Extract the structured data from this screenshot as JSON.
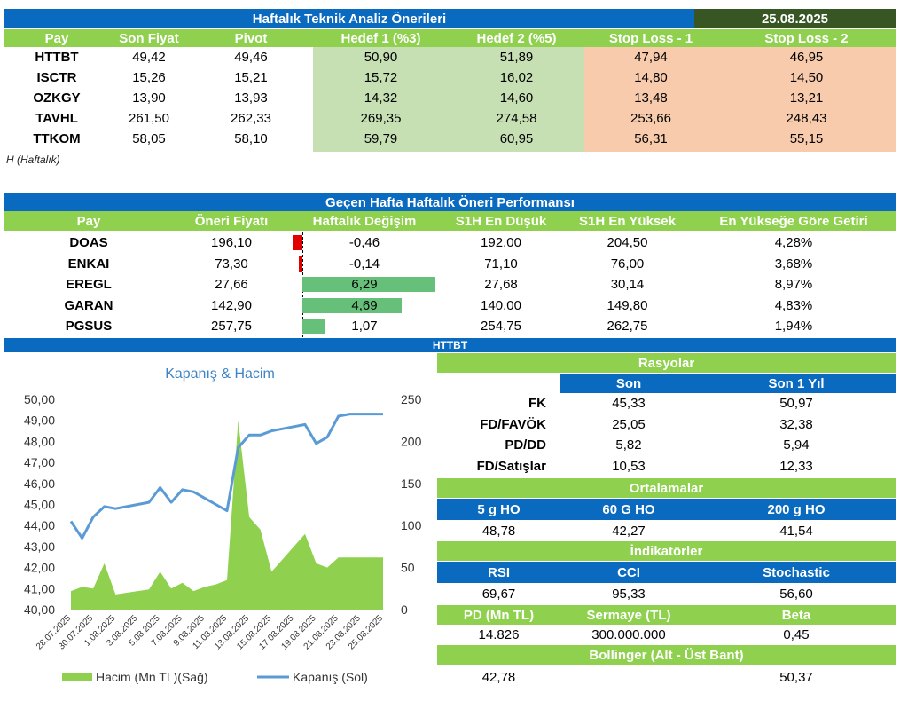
{
  "colors": {
    "blue": "#0a6ac0",
    "green": "#8fd14f",
    "dark_green": "#375623",
    "target_fill": "#c6e0b4",
    "stop_fill": "#f8cbad",
    "bar_negative": "#e00000",
    "bar_positive": "#66c07a",
    "line": "#5b9bd5",
    "area": "#8fd14f"
  },
  "weekly": {
    "title": "Haftalık Teknik Analiz Önerileri",
    "date": "25.08.2025",
    "headers": [
      "Pay",
      "Son Fiyat",
      "Pivot",
      "Hedef 1 (%3)",
      "Hedef 2 (%5)",
      "Stop Loss - 1",
      "Stop Loss - 2"
    ],
    "rows": [
      [
        "HTTBT",
        "49,42",
        "49,46",
        "50,90",
        "51,89",
        "47,94",
        "46,95"
      ],
      [
        "ISCTR",
        "15,26",
        "15,21",
        "15,72",
        "16,02",
        "14,80",
        "14,50"
      ],
      [
        "OZKGY",
        "13,90",
        "13,93",
        "14,32",
        "14,60",
        "13,48",
        "13,21"
      ],
      [
        "TAVHL",
        "261,50",
        "262,33",
        "269,35",
        "274,58",
        "253,66",
        "248,43"
      ],
      [
        "TTKOM",
        "58,05",
        "58,10",
        "59,79",
        "60,95",
        "56,31",
        "55,15"
      ]
    ],
    "note": "H (Haftalık)"
  },
  "performance": {
    "title": "Geçen Hafta Haftalık Öneri Performansı",
    "headers": [
      "Pay",
      "Öneri Fiyatı",
      "Haftalık Değişim",
      "S1H En Düşük",
      "S1H En Yüksek",
      "En Yükseğe Göre Getiri"
    ],
    "rows": [
      {
        "pay": "DOAS",
        "price": "196,10",
        "change": "-0,46",
        "change_value": -0.46,
        "low": "192,00",
        "high": "204,50",
        "ret": "4,28%"
      },
      {
        "pay": "ENKAI",
        "price": "73,30",
        "change": "-0,14",
        "change_value": -0.14,
        "low": "71,10",
        "high": "76,00",
        "ret": "3,68%"
      },
      {
        "pay": "EREGL",
        "price": "27,66",
        "change": "6,29",
        "change_value": 6.29,
        "low": "27,68",
        "high": "30,14",
        "ret": "8,97%"
      },
      {
        "pay": "GARAN",
        "price": "142,90",
        "change": "4,69",
        "change_value": 4.69,
        "low": "140,00",
        "high": "149,80",
        "ret": "4,83%"
      },
      {
        "pay": "PGSUS",
        "price": "257,75",
        "change": "1,07",
        "change_value": 1.07,
        "low": "254,75",
        "high": "262,75",
        "ret": "1,94%"
      }
    ]
  },
  "stock_section": {
    "title": "HTTBT"
  },
  "chart_data": {
    "type": "line",
    "title": "Kapanış & Hacim",
    "x": [
      "28.07.2025",
      "29.07.2025",
      "30.07.2025",
      "31.07.2025",
      "1.08.2025",
      "2.08.2025",
      "3.08.2025",
      "4.08.2025",
      "5.08.2025",
      "6.08.2025",
      "7.08.2025",
      "8.08.2025",
      "9.08.2025",
      "10.08.2025",
      "11.08.2025",
      "12.08.2025",
      "13.08.2025",
      "14.08.2025",
      "15.08.2025",
      "16.08.2025",
      "17.08.2025",
      "18.08.2025",
      "19.08.2025",
      "20.08.2025",
      "21.08.2025",
      "22.08.2025",
      "23.08.2025",
      "24.08.2025",
      "25.08.2025"
    ],
    "x_tick_labels": [
      "28.07.2025",
      "30.07.2025",
      "1.08.2025",
      "3.08.2025",
      "5.08.2025",
      "7.08.2025",
      "9.08.2025",
      "11.08.2025",
      "13.08.2025",
      "15.08.2025",
      "17.08.2025",
      "19.08.2025",
      "21.08.2025",
      "23.08.2025",
      "25.08.2025"
    ],
    "y_left": {
      "min": 40,
      "max": 50,
      "ticks": [
        "40,00",
        "41,00",
        "42,00",
        "43,00",
        "44,00",
        "45,00",
        "46,00",
        "47,00",
        "48,00",
        "49,00",
        "50,00"
      ]
    },
    "y_right": {
      "min": 0,
      "max": 250,
      "ticks": [
        "0",
        "50",
        "100",
        "150",
        "200",
        "250"
      ]
    },
    "series": [
      {
        "name": "Hacim (Mn TL)(Sağ)",
        "kind": "area",
        "axis": "right",
        "values": [
          22,
          27,
          25,
          55,
          18,
          20,
          22,
          24,
          45,
          25,
          32,
          22,
          27,
          30,
          35,
          225,
          110,
          95,
          45,
          60,
          75,
          90,
          55,
          50,
          62,
          62,
          62,
          62,
          62
        ]
      },
      {
        "name": "Kapanış (Sol)",
        "kind": "line",
        "axis": "left",
        "values": [
          44.2,
          43.4,
          44.4,
          44.9,
          44.8,
          44.9,
          45.0,
          45.1,
          45.8,
          45.1,
          45.7,
          45.6,
          45.3,
          45.0,
          44.7,
          47.7,
          48.3,
          48.3,
          48.5,
          48.6,
          48.7,
          48.8,
          47.9,
          48.2,
          49.2,
          49.3,
          49.3,
          49.3,
          49.3
        ]
      }
    ],
    "legend": "bottom",
    "grid": false
  },
  "ratios": {
    "title": "Rasyolar",
    "col_headers": [
      "Son",
      "Son 1 Yıl"
    ],
    "rows": [
      {
        "label": "FK",
        "son": "45,33",
        "year": "50,97"
      },
      {
        "label": "FD/FAVÖK",
        "son": "25,05",
        "year": "32,38"
      },
      {
        "label": "PD/DD",
        "son": "5,82",
        "year": "5,94"
      },
      {
        "label": "FD/Satışlar",
        "son": "10,53",
        "year": "12,33"
      }
    ]
  },
  "averages": {
    "title": "Ortalamalar",
    "headers": [
      "5 g HO",
      "60 G HO",
      "200 g HO"
    ],
    "values": [
      "48,78",
      "42,27",
      "41,54"
    ]
  },
  "indicators": {
    "title": "İndikatörler",
    "headers": [
      "RSI",
      "CCI",
      "Stochastic"
    ],
    "values": [
      "69,67",
      "95,33",
      "56,60"
    ]
  },
  "misc": {
    "headers": [
      "PD (Mn TL)",
      "Sermaye (TL)",
      "Beta"
    ],
    "values": [
      "14.826",
      "300.000.000",
      "0,45"
    ]
  },
  "bollinger": {
    "title": "Bollinger (Alt -  Üst Bant)",
    "low": "42,78",
    "high": "50,37"
  }
}
